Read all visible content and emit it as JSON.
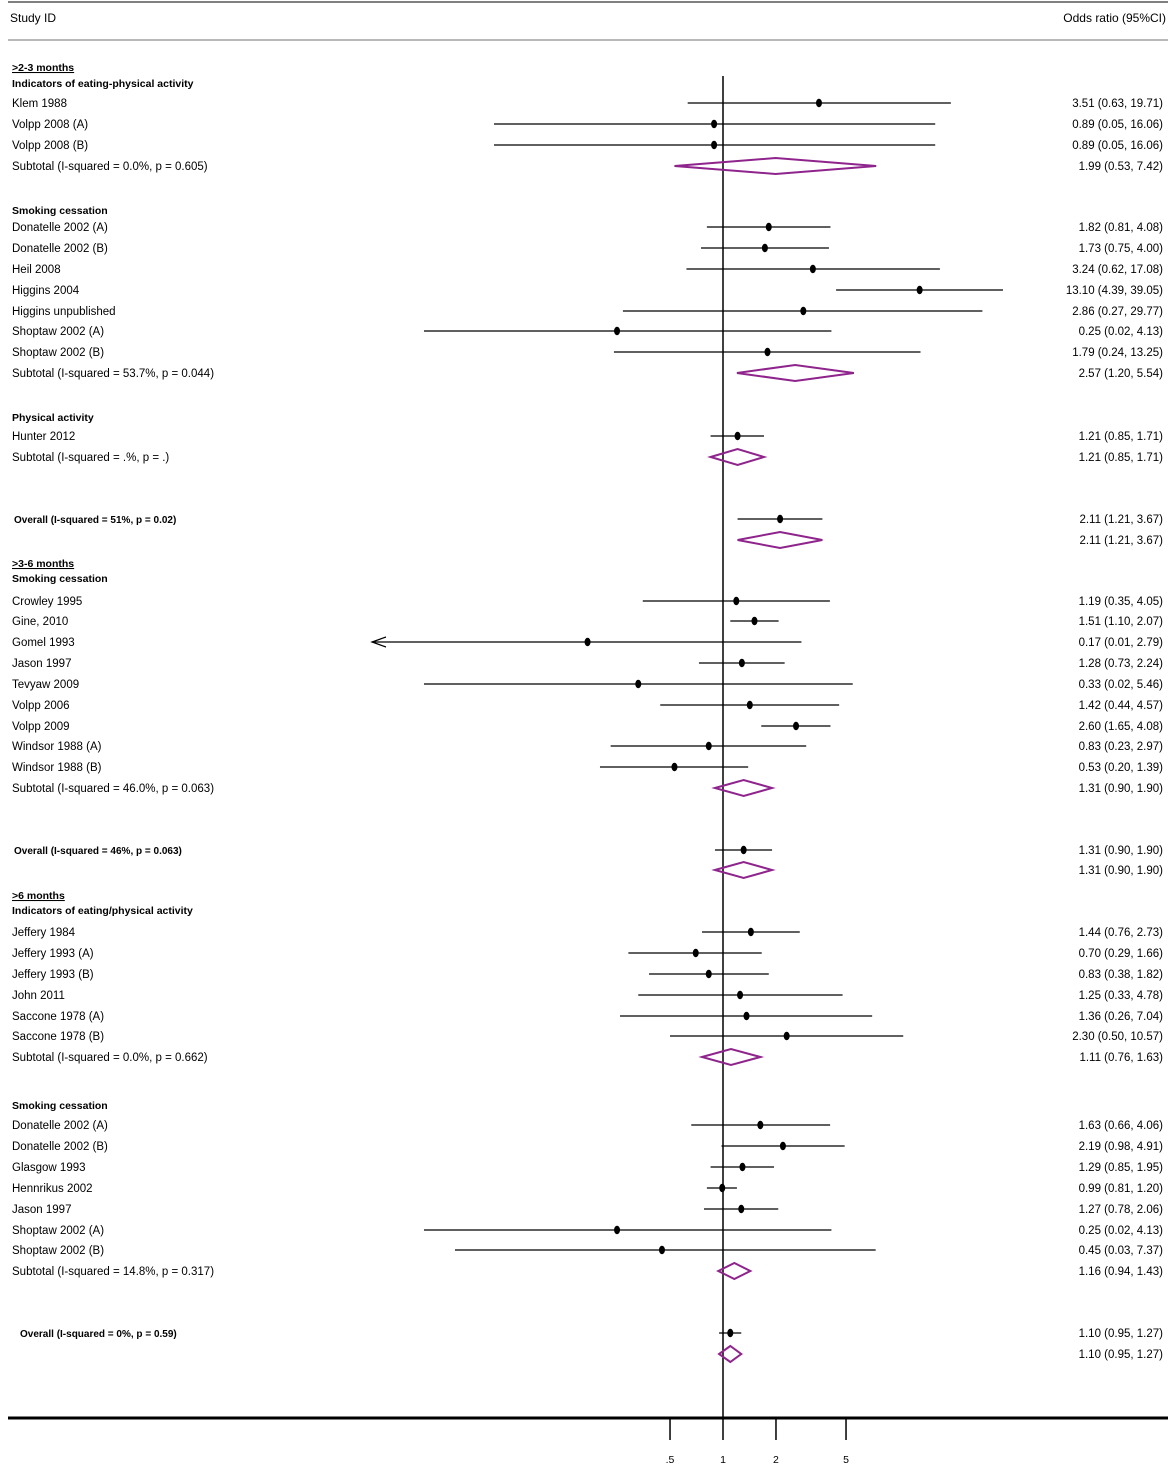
{
  "header": {
    "study_label": "Study ID",
    "effect_label": "Odds ratio (95%CI)"
  },
  "chart_data": {
    "type": "forest",
    "scale": "log",
    "reference_line": 1,
    "x_ticks": [
      {
        "value": 0.5,
        "label": ".5"
      },
      {
        "value": 1,
        "label": "1"
      },
      {
        "value": 2,
        "label": "2"
      },
      {
        "value": 5,
        "label": "5"
      }
    ],
    "rows": [
      {
        "kind": "period",
        "label": ">2-3 months"
      },
      {
        "kind": "header",
        "label": "Indicators of eating-physical activity"
      },
      {
        "kind": "study",
        "label": "Klem 1988",
        "or": 3.51,
        "lo": 0.63,
        "hi": 19.71,
        "ci": "3.51 (0.63, 19.71)"
      },
      {
        "kind": "study",
        "label": "Volpp 2008 (A)",
        "or": 0.89,
        "lo": 0.05,
        "hi": 16.06,
        "ci": "0.89 (0.05, 16.06)"
      },
      {
        "kind": "study",
        "label": "Volpp 2008 (B)",
        "or": 0.89,
        "lo": 0.05,
        "hi": 16.06,
        "ci": "0.89 (0.05, 16.06)"
      },
      {
        "kind": "subtotal",
        "label": "Subtotal  (I-squared = 0.0%, p = 0.605)",
        "or": 1.99,
        "lo": 0.53,
        "hi": 7.42,
        "ci": "1.99 (0.53, 7.42)"
      },
      {
        "kind": "header",
        "label": "Smoking cessation"
      },
      {
        "kind": "study",
        "label": "Donatelle 2002 (A)",
        "or": 1.82,
        "lo": 0.81,
        "hi": 4.08,
        "ci": "1.82 (0.81, 4.08)"
      },
      {
        "kind": "study",
        "label": "Donatelle 2002 (B)",
        "or": 1.73,
        "lo": 0.75,
        "hi": 4.0,
        "ci": "1.73 (0.75, 4.00)"
      },
      {
        "kind": "study",
        "label": "Heil 2008",
        "or": 3.24,
        "lo": 0.62,
        "hi": 17.08,
        "ci": "3.24 (0.62, 17.08)"
      },
      {
        "kind": "study",
        "label": "Higgins 2004",
        "or": 13.1,
        "lo": 4.39,
        "hi": 39.05,
        "ci": "13.10 (4.39, 39.05)"
      },
      {
        "kind": "study",
        "label": "Higgins unpublished",
        "or": 2.86,
        "lo": 0.27,
        "hi": 29.77,
        "ci": "2.86 (0.27, 29.77)"
      },
      {
        "kind": "study",
        "label": "Shoptaw 2002 (A)",
        "or": 0.25,
        "lo": 0.02,
        "hi": 4.13,
        "ci": "0.25 (0.02, 4.13)"
      },
      {
        "kind": "study",
        "label": "Shoptaw 2002 (B)",
        "or": 1.79,
        "lo": 0.24,
        "hi": 13.25,
        "ci": "1.79 (0.24, 13.25)"
      },
      {
        "kind": "subtotal",
        "label": "Subtotal  (I-squared = 53.7%, p = 0.044)",
        "or": 2.57,
        "lo": 1.2,
        "hi": 5.54,
        "ci": "2.57 (1.20, 5.54)"
      },
      {
        "kind": "header",
        "label": "Physical activity"
      },
      {
        "kind": "study",
        "label": "Hunter 2012",
        "or": 1.21,
        "lo": 0.85,
        "hi": 1.71,
        "ci": "1.21 (0.85, 1.71)"
      },
      {
        "kind": "subtotal",
        "label": "Subtotal  (I-squared = .%, p = .)",
        "or": 1.21,
        "lo": 0.85,
        "hi": 1.71,
        "ci": "1.21 (0.85, 1.71)"
      },
      {
        "kind": "overall-study",
        "label": "Overall (I-squared  = 51%, p = 0.02)",
        "or": 2.11,
        "lo": 1.21,
        "hi": 3.67,
        "ci": "2.11 (1.21, 3.67)"
      },
      {
        "kind": "overall-diamond",
        "or": 2.11,
        "lo": 1.21,
        "hi": 3.67,
        "ci": "2.11 (1.21, 3.67)"
      },
      {
        "kind": "period",
        "label": ">3-6 months"
      },
      {
        "kind": "header",
        "label": "Smoking cessation"
      },
      {
        "kind": "study",
        "label": "Crowley 1995",
        "or": 1.19,
        "lo": 0.35,
        "hi": 4.05,
        "ci": "1.19 (0.35, 4.05)"
      },
      {
        "kind": "study",
        "label": "Gine, 2010",
        "or": 1.51,
        "lo": 1.1,
        "hi": 2.07,
        "ci": "1.51 (1.10, 2.07)"
      },
      {
        "kind": "study",
        "label": "Gomel 1993",
        "or": 0.17,
        "lo": 0.01,
        "hi": 2.79,
        "ci": "0.17 (0.01, 2.79)",
        "arrow_left": true
      },
      {
        "kind": "study",
        "label": "Jason 1997",
        "or": 1.28,
        "lo": 0.73,
        "hi": 2.24,
        "ci": "1.28 (0.73, 2.24)"
      },
      {
        "kind": "study",
        "label": "Tevyaw 2009",
        "or": 0.33,
        "lo": 0.02,
        "hi": 5.46,
        "ci": "0.33 (0.02, 5.46)"
      },
      {
        "kind": "study",
        "label": "Volpp 2006",
        "or": 1.42,
        "lo": 0.44,
        "hi": 4.57,
        "ci": "1.42 (0.44, 4.57)"
      },
      {
        "kind": "study",
        "label": "Volpp 2009",
        "or": 2.6,
        "lo": 1.65,
        "hi": 4.08,
        "ci": "2.60 (1.65, 4.08)"
      },
      {
        "kind": "study",
        "label": "Windsor 1988 (A)",
        "or": 0.83,
        "lo": 0.23,
        "hi": 2.97,
        "ci": "0.83 (0.23, 2.97)"
      },
      {
        "kind": "study",
        "label": "Windsor 1988 (B)",
        "or": 0.53,
        "lo": 0.2,
        "hi": 1.39,
        "ci": "0.53 (0.20, 1.39)"
      },
      {
        "kind": "subtotal",
        "label": "Subtotal  (I-squared = 46.0%, p = 0.063)",
        "or": 1.31,
        "lo": 0.9,
        "hi": 1.9,
        "ci": "1.31 (0.90, 1.90)"
      },
      {
        "kind": "overall-study",
        "label": "Overall (I-squared = 46%, p = 0.063)",
        "or": 1.31,
        "lo": 0.9,
        "hi": 1.9,
        "ci": "1.31 (0.90, 1.90)"
      },
      {
        "kind": "overall-diamond",
        "or": 1.31,
        "lo": 0.9,
        "hi": 1.9,
        "ci": "1.31 (0.90, 1.90)"
      },
      {
        "kind": "period",
        "label": ">6 months"
      },
      {
        "kind": "header",
        "label": "Indicators of eating/physical activity"
      },
      {
        "kind": "study",
        "label": "Jeffery 1984",
        "or": 1.44,
        "lo": 0.76,
        "hi": 2.73,
        "ci": "1.44 (0.76, 2.73)"
      },
      {
        "kind": "study",
        "label": "Jeffery 1993 (A)",
        "or": 0.7,
        "lo": 0.29,
        "hi": 1.66,
        "ci": "0.70 (0.29, 1.66)"
      },
      {
        "kind": "study",
        "label": "Jeffery 1993 (B)",
        "or": 0.83,
        "lo": 0.38,
        "hi": 1.82,
        "ci": "0.83 (0.38, 1.82)"
      },
      {
        "kind": "study",
        "label": "John 2011",
        "or": 1.25,
        "lo": 0.33,
        "hi": 4.78,
        "ci": "1.25 (0.33, 4.78)"
      },
      {
        "kind": "study",
        "label": "Saccone 1978 (A)",
        "or": 1.36,
        "lo": 0.26,
        "hi": 7.04,
        "ci": "1.36 (0.26, 7.04)"
      },
      {
        "kind": "study",
        "label": "Saccone 1978 (B)",
        "or": 2.3,
        "lo": 0.5,
        "hi": 10.57,
        "ci": "2.30 (0.50, 10.57)"
      },
      {
        "kind": "subtotal",
        "label": "Subtotal  (I-squared = 0.0%, p = 0.662)",
        "or": 1.11,
        "lo": 0.76,
        "hi": 1.63,
        "ci": "1.11 (0.76, 1.63)"
      },
      {
        "kind": "header",
        "label": "Smoking cessation"
      },
      {
        "kind": "study",
        "label": "Donatelle 2002 (A)",
        "or": 1.63,
        "lo": 0.66,
        "hi": 4.06,
        "ci": "1.63 (0.66, 4.06)"
      },
      {
        "kind": "study",
        "label": "Donatelle 2002 (B)",
        "or": 2.19,
        "lo": 0.98,
        "hi": 4.91,
        "ci": "2.19 (0.98, 4.91)"
      },
      {
        "kind": "study",
        "label": "Glasgow 1993",
        "or": 1.29,
        "lo": 0.85,
        "hi": 1.95,
        "ci": "1.29 (0.85, 1.95)"
      },
      {
        "kind": "study",
        "label": "Hennrikus 2002",
        "or": 0.99,
        "lo": 0.81,
        "hi": 1.2,
        "ci": "0.99 (0.81, 1.20)"
      },
      {
        "kind": "study",
        "label": "Jason 1997",
        "or": 1.27,
        "lo": 0.78,
        "hi": 2.06,
        "ci": "1.27 (0.78, 2.06)"
      },
      {
        "kind": "study",
        "label": "Shoptaw 2002 (A)",
        "or": 0.25,
        "lo": 0.02,
        "hi": 4.13,
        "ci": "0.25 (0.02, 4.13)"
      },
      {
        "kind": "study",
        "label": "Shoptaw 2002 (B)",
        "or": 0.45,
        "lo": 0.03,
        "hi": 7.37,
        "ci": "0.45 (0.03, 7.37)"
      },
      {
        "kind": "subtotal",
        "label": "Subtotal  (I-squared = 14.8%, p = 0.317)",
        "or": 1.16,
        "lo": 0.94,
        "hi": 1.43,
        "ci": "1.16 (0.94, 1.43)"
      },
      {
        "kind": "overall-study",
        "label": "Overall (I-squared = 0%, p = 0.59)",
        "or": 1.1,
        "lo": 0.95,
        "hi": 1.27,
        "ci": "1.10 (0.95, 1.27)"
      },
      {
        "kind": "overall-diamond",
        "or": 1.1,
        "lo": 0.95,
        "hi": 1.27,
        "ci": "1.10 (0.95, 1.27)"
      }
    ],
    "colors": {
      "diamond": "#8e248c",
      "line": "#000000",
      "rule": "#b8b8b8"
    }
  }
}
